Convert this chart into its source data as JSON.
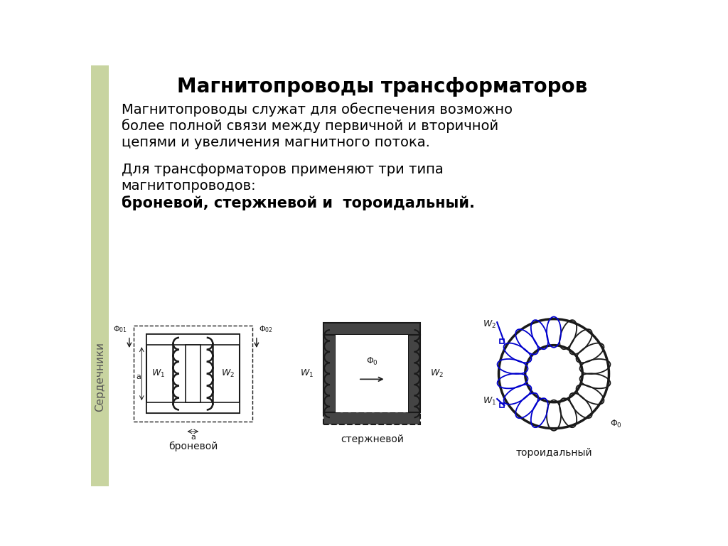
{
  "title": "Магнитопроводы трансформаторов",
  "paragraph1_line1": "Магнитопроводы служат для обеспечения возможно",
  "paragraph1_line2": "более полной связи между первичной и вторичной",
  "paragraph1_line3": "цепями и увеличения магнитного потока.",
  "paragraph2_line1": "Для трансформаторов применяют три типа",
  "paragraph2_line2": "магнитопроводов:",
  "paragraph2_bold": "броневой, стержневой и  тороидальный.",
  "label_bronev": "броневой",
  "label_sterj": "стержневой",
  "label_toroid": "тороидальный",
  "sidebar_text": "Сердечники",
  "sidebar_color": "#c8d4a0",
  "bg_color": "#ffffff",
  "diagram_color": "#1a1a1a",
  "toroid_line_color": "#0000cc"
}
